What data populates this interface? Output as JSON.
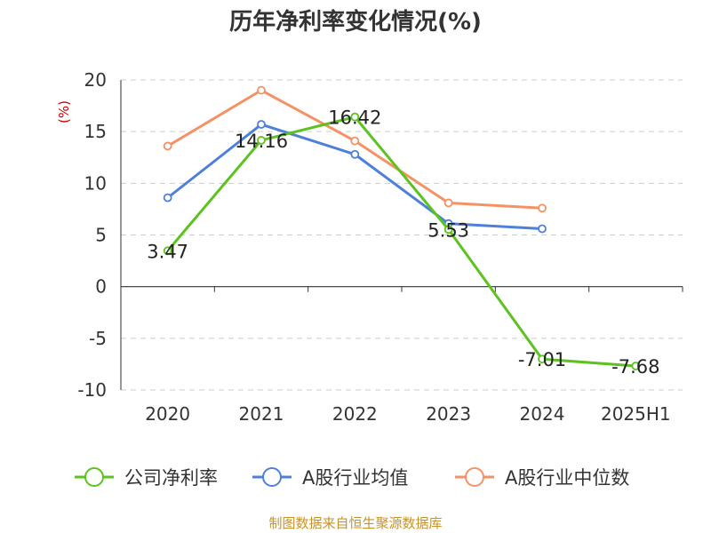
{
  "title": "历年净利率变化情况(%)",
  "source_note": "制图数据来自恒生聚源数据库",
  "chart_data": {
    "type": "line",
    "title": "历年净利率变化情况(%)",
    "ylabel": "(%)",
    "ylim": [
      -10,
      20
    ],
    "yticks": [
      "20",
      "15",
      "10",
      "5",
      "0",
      "-5",
      "-10"
    ],
    "grid": true,
    "legend_position": "bottom",
    "categories": [
      "2020",
      "2021",
      "2022",
      "2023",
      "2024",
      "2025H1"
    ],
    "series": [
      {
        "name": "公司净利率",
        "color": "#5cc21e",
        "values": [
          3.47,
          14.16,
          16.42,
          5.53,
          -7.01,
          -7.68
        ],
        "labels": [
          "3.47",
          "14.16",
          "16.42",
          "5.53",
          "-7.01",
          "-7.68"
        ]
      },
      {
        "name": "A股行业均值",
        "color": "#4f80d9",
        "values": [
          8.6,
          15.7,
          12.8,
          6.1,
          5.6,
          null
        ]
      },
      {
        "name": "A股行业中位数",
        "color": "#f59264",
        "values": [
          13.6,
          19.0,
          14.1,
          8.1,
          7.6,
          null
        ]
      }
    ]
  }
}
